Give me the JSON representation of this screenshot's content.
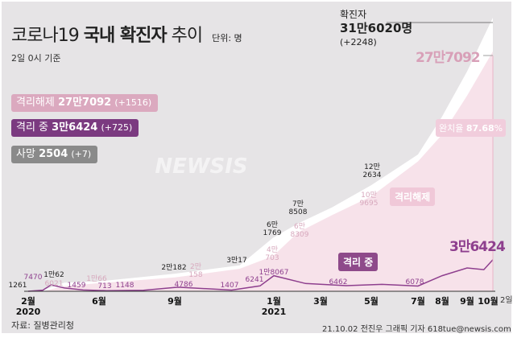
{
  "header": {
    "title_light": "코로나19",
    "title_bold": "국내 확진자",
    "title_end": "추이",
    "unit": "단위: 명",
    "subtitle": "2일 0시 기준"
  },
  "legend": {
    "released": {
      "label": "격리해제",
      "value": "27만7092",
      "delta": "(+1516)",
      "color": "#dba9bf"
    },
    "isolated": {
      "label": "격리 중",
      "value": "3만6424",
      "delta": "(+725)",
      "color": "#7b3a80"
    },
    "deaths": {
      "label": "사망",
      "value": "2504",
      "delta": "(+7)",
      "color": "#8a8a8a"
    }
  },
  "confirmed_callout": {
    "label": "확진자",
    "value": "31만6020명",
    "delta": "(+2248)"
  },
  "released_callout": "27만7092",
  "recovery_rate": {
    "label": "완치율",
    "value": "87.68",
    "unit": "%"
  },
  "series_tags": {
    "released": "격리해제",
    "isolated": "격리 중",
    "isolated_end": "3만6424"
  },
  "source": "자료: 질병관리청",
  "credit": "21.10.02 전진우 그래픽 기자 618tue@newsis.com",
  "watermark": "NEWSIS",
  "chart_data": {
    "type": "area",
    "x_ticks": [
      {
        "label": "2월",
        "date": "2020-02-01",
        "year": "2020"
      },
      {
        "label": "6월",
        "date": "2020-06-01"
      },
      {
        "label": "9월",
        "date": "2020-09-01"
      },
      {
        "label": "1월",
        "date": "2021-01-01",
        "year": "2021"
      },
      {
        "label": "3월",
        "date": "2021-03-01"
      },
      {
        "label": "5월",
        "date": "2021-05-01"
      },
      {
        "label": "7월",
        "date": "2021-07-01"
      },
      {
        "label": "8월",
        "date": "2021-08-01"
      },
      {
        "label": "9월",
        "date": "2021-09-01"
      },
      {
        "label": "10월",
        "date": "2021-10-01"
      }
    ],
    "x_end_label": "2일",
    "ylim": [
      0,
      316020
    ],
    "series": [
      {
        "name": "확진자",
        "color": "#ffffff",
        "points": [
          [
            "2020-02-01",
            20
          ],
          [
            "2020-02-26",
            1261
          ],
          [
            "2020-04-03",
            10062
          ],
          [
            "2020-06-01",
            11541
          ],
          [
            "2020-08-31",
            20182
          ],
          [
            "2020-11-20",
            30017
          ],
          [
            "2020-12-31",
            61769
          ],
          [
            "2021-02-01",
            78508
          ],
          [
            "2021-03-15",
            97000
          ],
          [
            "2021-05-01",
            122634
          ],
          [
            "2021-07-01",
            158000
          ],
          [
            "2021-08-01",
            202000
          ],
          [
            "2021-09-01",
            254000
          ],
          [
            "2021-10-02",
            316020
          ]
        ],
        "labels": [
          [
            "2020-02-26",
            "1261"
          ],
          [
            "2020-04-03",
            "1만62"
          ],
          [
            "2020-08-31",
            "2만182"
          ],
          [
            "2020-11-20",
            "3만17"
          ],
          [
            "2020-12-31",
            "6만\n1769"
          ],
          [
            "2021-02-01",
            "7만\n8508"
          ],
          [
            "2021-05-01",
            "12만\n2634"
          ]
        ]
      },
      {
        "name": "격리해제",
        "color": "#f2d3e0",
        "points": [
          [
            "2020-02-01",
            0
          ],
          [
            "2020-02-26",
            22
          ],
          [
            "2020-04-03",
            6021
          ],
          [
            "2020-06-10",
            10066
          ],
          [
            "2020-09-01",
            16000
          ],
          [
            "2020-11-20",
            26000
          ],
          [
            "2020-12-31",
            40703
          ],
          [
            "2021-02-01",
            68309
          ],
          [
            "2021-03-15",
            88000
          ],
          [
            "2021-05-01",
            109695
          ],
          [
            "2021-07-01",
            150000
          ],
          [
            "2021-08-01",
            181000
          ],
          [
            "2021-09-01",
            226000
          ],
          [
            "2021-10-02",
            277092
          ]
        ],
        "labels": [
          [
            "2020-04-03",
            "6021"
          ],
          [
            "2020-06-10",
            "1만66"
          ],
          [
            "2020-09-10",
            "2만\n158"
          ],
          [
            "2020-12-31",
            "4만\n703"
          ],
          [
            "2021-02-01",
            "6만\n8309"
          ],
          [
            "2021-05-01",
            "10만\n9695"
          ]
        ]
      },
      {
        "name": "격리 중",
        "color": "#8e3f8e",
        "points": [
          [
            "2020-02-01",
            0
          ],
          [
            "2020-02-26",
            1261
          ],
          [
            "2020-03-11",
            7470
          ],
          [
            "2020-04-03",
            3800
          ],
          [
            "2020-05-05",
            1459
          ],
          [
            "2020-06-10",
            713
          ],
          [
            "2020-07-25",
            1148
          ],
          [
            "2020-09-05",
            4786
          ],
          [
            "2020-11-10",
            1407
          ],
          [
            "2020-12-15",
            6241
          ],
          [
            "2021-01-01",
            18067
          ],
          [
            "2021-02-10",
            9000
          ],
          [
            "2021-04-01",
            6462
          ],
          [
            "2021-05-15",
            8000
          ],
          [
            "2021-07-01",
            6078
          ],
          [
            "2021-08-01",
            18000
          ],
          [
            "2021-09-01",
            27000
          ],
          [
            "2021-09-25",
            25000
          ],
          [
            "2021-10-02",
            36424
          ]
        ],
        "labels": [
          [
            "2020-03-11",
            "7470"
          ],
          [
            "2020-05-05",
            "1459"
          ],
          [
            "2020-06-10",
            "713"
          ],
          [
            "2020-07-25",
            "1148"
          ],
          [
            "2020-09-05",
            "4786"
          ],
          [
            "2020-11-10",
            "1407"
          ],
          [
            "2020-12-10",
            "6241"
          ],
          [
            "2021-01-01",
            "1만8067"
          ],
          [
            "2021-04-01",
            "6462"
          ],
          [
            "2021-07-01",
            "6078"
          ]
        ]
      }
    ]
  }
}
